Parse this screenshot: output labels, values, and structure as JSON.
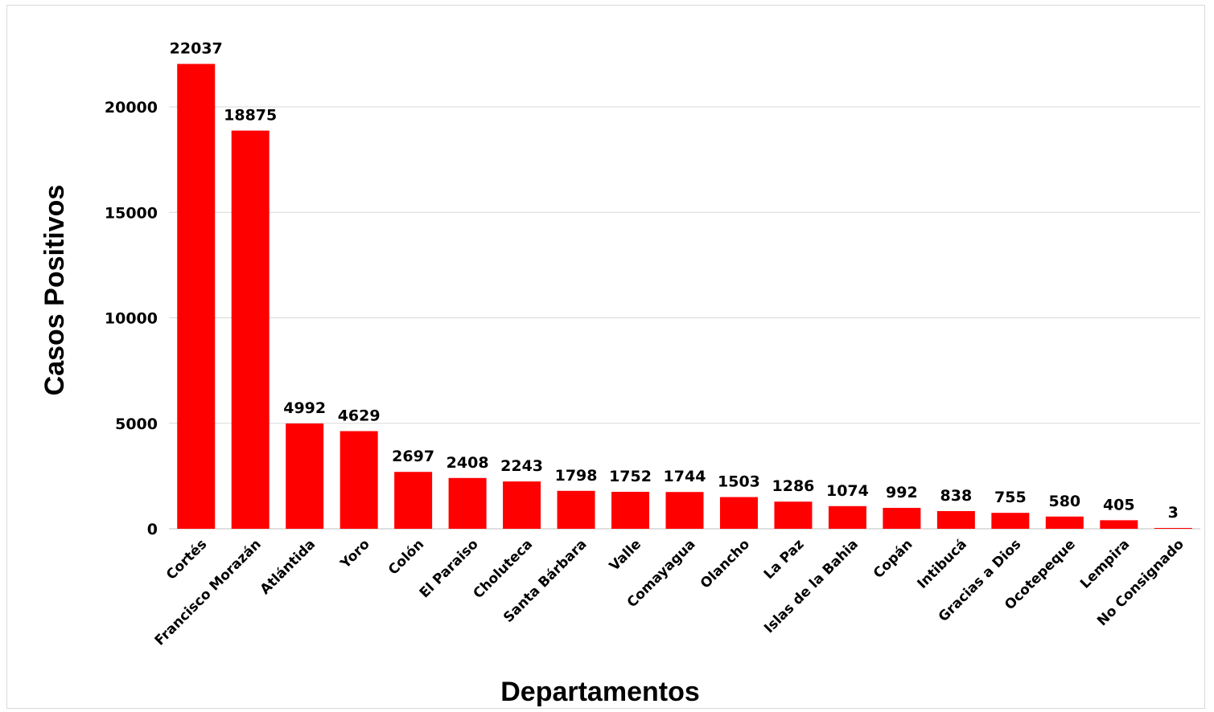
{
  "chart_data": {
    "type": "bar",
    "xlabel": "Departamentos",
    "ylabel": "Casos Positivos",
    "ylim": [
      0,
      22500
    ],
    "yticks": [
      0,
      5000,
      10000,
      15000,
      20000
    ],
    "grid": true,
    "color": "#ff0000",
    "categories": [
      "Cortés",
      "Francisco Morazán",
      "Atlántida",
      "Yoro",
      "Colón",
      "El Paraiso",
      "Choluteca",
      "Santa Bárbara",
      "Valle",
      "Comayagua",
      "Olancho",
      "La Paz",
      "Islas de la Bahia",
      "Copán",
      "Intibucá",
      "Gracias a Dios",
      "Ocotepeque",
      "Lempira",
      "No Consignado"
    ],
    "values": [
      22037,
      18875,
      4992,
      4629,
      2697,
      2408,
      2243,
      1798,
      1752,
      1744,
      1503,
      1286,
      1074,
      992,
      838,
      755,
      580,
      405,
      3
    ]
  }
}
